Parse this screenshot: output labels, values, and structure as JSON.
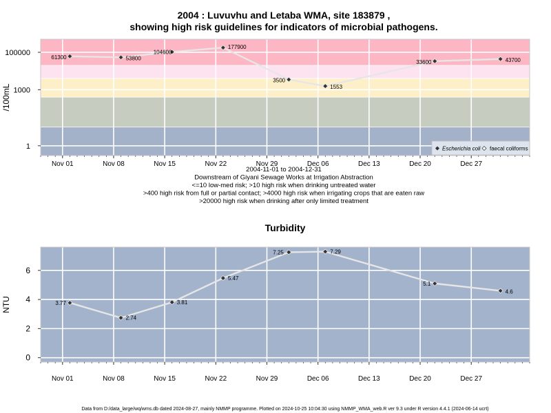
{
  "chart_data": [
    {
      "type": "line",
      "title_line1": "2004 : Luvuvhu and Letaba WMA, site 183879 ,",
      "title_line2": "showing high risk guidelines for indicators of microbial pathogens.",
      "ylabel": "/100mL",
      "yscale": "log",
      "ylim": [
        0.3,
        500000
      ],
      "yticks": [
        {
          "value": 1,
          "label": "1"
        },
        {
          "value": 1000,
          "label": "1000"
        },
        {
          "value": 100000,
          "label": "100000"
        }
      ],
      "xticks": [
        "Nov 01",
        "Nov 08",
        "Nov 15",
        "Nov 22",
        "Nov 29",
        "Dec 06",
        "Dec 13",
        "Dec 20",
        "Dec 27"
      ],
      "xlim": [
        "2004-10-29",
        "2005-01-04"
      ],
      "grid": true,
      "legend_position": "bottom-right",
      "legend_items": [
        "Escherichia coli",
        "faecal coliforms"
      ],
      "risk_bands": [
        {
          "from": 0.3,
          "to": 10,
          "color": "#a3b1c9"
        },
        {
          "from": 10,
          "to": 400,
          "color": "#c6ccbf"
        },
        {
          "from": 400,
          "to": 4000,
          "color": "#fdf0c8"
        },
        {
          "from": 4000,
          "to": 20000,
          "color": "#fde2f0"
        },
        {
          "from": 20000,
          "to": 500000,
          "color": "#fdb6c3"
        }
      ],
      "series": [
        {
          "name": "Escherichia coli",
          "points": [
            {
              "date": "2004-11-02",
              "value": 61300,
              "label": "61300"
            },
            {
              "date": "2004-11-09",
              "value": 53800,
              "label": "53800"
            },
            {
              "date": "2004-11-16",
              "value": 104600,
              "label": "104600"
            },
            {
              "date": "2004-11-23",
              "value": 177900,
              "label": "177900"
            },
            {
              "date": "2004-12-02",
              "value": 3500,
              "label": "3500"
            },
            {
              "date": "2004-12-07",
              "value": 1553,
              "label": "1553"
            },
            {
              "date": "2004-12-22",
              "value": 33600,
              "label": "33600"
            },
            {
              "date": "2004-12-31",
              "value": 43700,
              "label": "43700"
            }
          ]
        }
      ],
      "notes": [
        "2004-11-01 to 2004-12-31",
        "Downstream of Giyani Sewage Works at Irrigation Abstraction",
        "<=10 low-med risk; >10 high risk when drinking untreated water",
        ">400 high risk from full or partial contact; >4000 high risk when irrigating crops that are eaten raw",
        ">20000 high risk when drinking after only limited treatment"
      ]
    },
    {
      "type": "line",
      "title": "Turbidity",
      "ylabel": "NTU",
      "ylim": [
        -0.3,
        7.6
      ],
      "yticks": [
        {
          "value": 0,
          "label": "0"
        },
        {
          "value": 2,
          "label": "2"
        },
        {
          "value": 4,
          "label": "4"
        },
        {
          "value": 6,
          "label": "6"
        }
      ],
      "xticks": [
        "Nov 01",
        "Nov 08",
        "Nov 15",
        "Nov 22",
        "Nov 29",
        "Dec 06",
        "Dec 13",
        "Dec 20",
        "Dec 27"
      ],
      "xlim": [
        "2004-10-29",
        "2005-01-04"
      ],
      "grid": true,
      "background": "#a3b3cc",
      "series": [
        {
          "name": "",
          "points": [
            {
              "date": "2004-11-02",
              "value": 3.77,
              "label": "3.77"
            },
            {
              "date": "2004-11-09",
              "value": 2.74,
              "label": "2.74"
            },
            {
              "date": "2004-11-16",
              "value": 3.81,
              "label": "3.81"
            },
            {
              "date": "2004-11-23",
              "value": 5.47,
              "label": "5.47"
            },
            {
              "date": "2004-12-02",
              "value": 7.25,
              "label": "7.25"
            },
            {
              "date": "2004-12-07",
              "value": 7.29,
              "label": "7.29"
            },
            {
              "date": "2004-12-22",
              "value": 5.1,
              "label": "5.1"
            },
            {
              "date": "2004-12-31",
              "value": 4.6,
              "label": "4.6"
            }
          ]
        }
      ]
    }
  ],
  "footer": "Data from D:/data_large/wq/wms.db dated 2024-08-27, mainly NMMP programme. Plotted on 2024-10-25 10:04:30 using NMMP_WMA_web.R ver 9.3 under R version 4.4.1 (2024-06-14 ucrt)"
}
